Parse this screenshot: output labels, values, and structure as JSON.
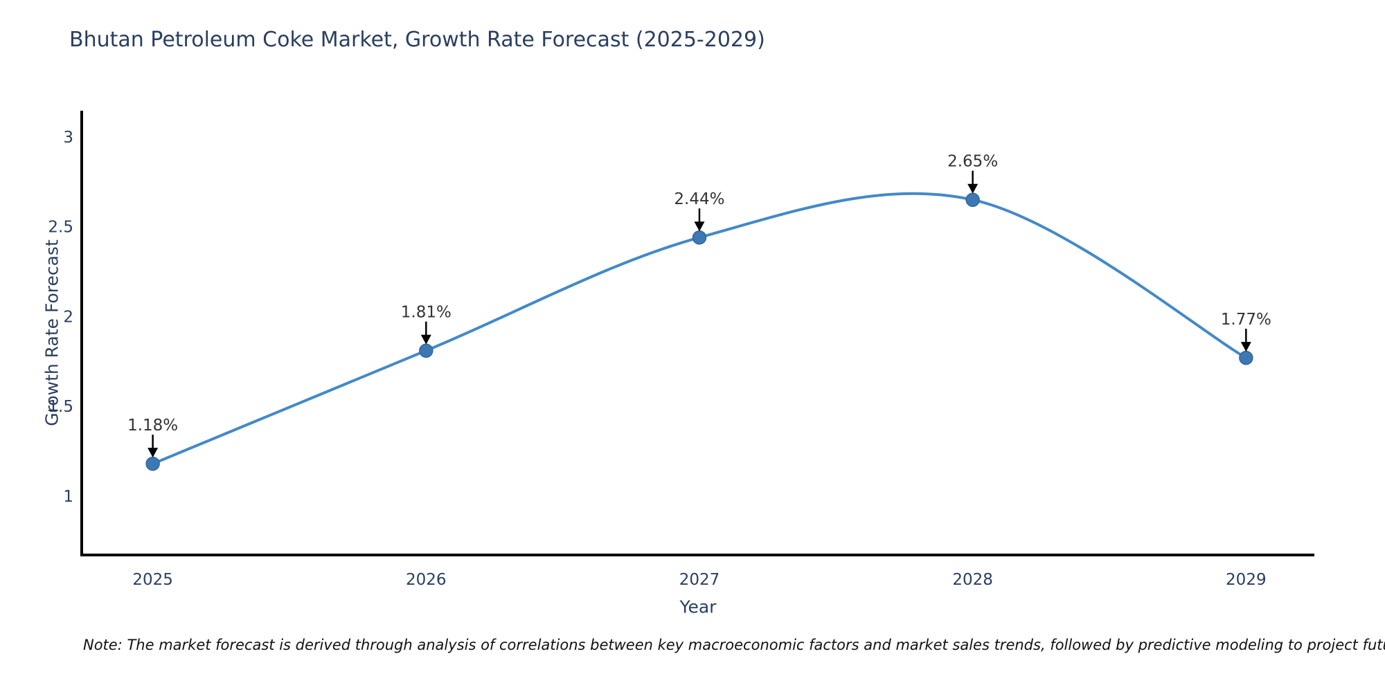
{
  "title": "Bhutan Petroleum Coke Market, Growth Rate Forecast (2025-2029)",
  "footnote": "Note: The market forecast is derived through analysis of correlations between key macroeconomic factors and market sales trends, followed by predictive modeling to project future sales",
  "chart_data": {
    "type": "line",
    "title": "Bhutan Petroleum Coke Market, Growth Rate Forecast (2025-2029)",
    "xlabel": "Year",
    "ylabel": "Growth Rate Forecast",
    "x": [
      2025,
      2026,
      2027,
      2028,
      2029
    ],
    "x_tick_labels": [
      "2025",
      "2026",
      "2027",
      "2028",
      "2029"
    ],
    "series": [
      {
        "name": "Growth Rate Forecast",
        "values": [
          1.18,
          1.81,
          2.44,
          2.65,
          1.77
        ]
      }
    ],
    "point_labels": [
      "1.18%",
      "1.81%",
      "2.44%",
      "2.65%",
      "1.77%"
    ],
    "y_ticks": [
      1,
      1.5,
      2,
      2.5,
      3
    ],
    "y_tick_labels": [
      "1",
      "1.5",
      "2",
      "2.5",
      "3"
    ],
    "xlim": [
      2024.74,
      2029.25
    ],
    "ylim": [
      0.672,
      3.146
    ],
    "line_shape": "spline",
    "grid": false,
    "legend": "none",
    "colors": {
      "line": "#4389c8",
      "marker_fill": "#3c79b4",
      "marker_edge": "#316699",
      "axis": "#000000",
      "tick_text": "#2a3f5f",
      "annotation_text": "#333333",
      "annotation_arrow": "#000000"
    }
  }
}
